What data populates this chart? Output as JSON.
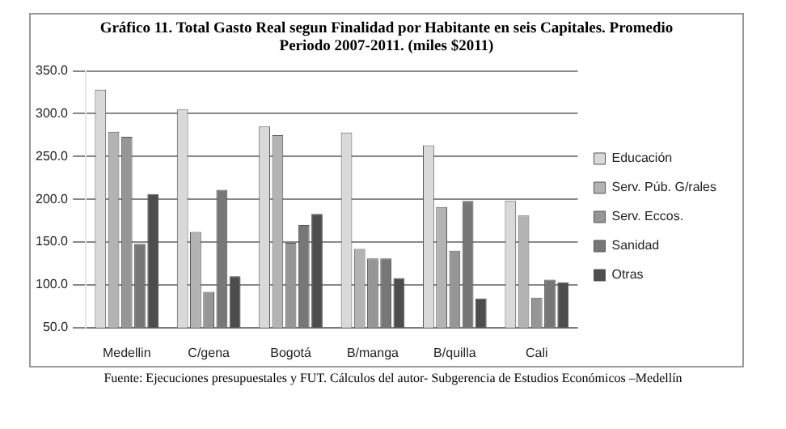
{
  "chart_data": {
    "type": "bar",
    "title": "Gráfico 11. Total Gasto Real segun Finalidad por Habitante en  seis Capitales. Promedio Periodo 2007-2011. (miles $2011)",
    "categories": [
      "Medellin",
      "C/gena",
      "Bogotá",
      "B/manga",
      "B/quilla",
      "Cali"
    ],
    "series": [
      {
        "name": "Educación",
        "color": "#d9d9d9",
        "values": [
          328,
          305,
          285,
          278,
          263,
          198
        ]
      },
      {
        "name": "Serv. Púb. G/rales",
        "color": "#b3b3b3",
        "values": [
          279,
          162,
          275,
          142,
          191,
          181
        ]
      },
      {
        "name": "Serv. Eccos.",
        "color": "#969696",
        "values": [
          273,
          92,
          149,
          131,
          140,
          85
        ]
      },
      {
        "name": "Sanidad",
        "color": "#777777",
        "values": [
          148,
          211,
          170,
          131,
          198,
          106
        ]
      },
      {
        "name": "Otras",
        "color": "#4d4d4d",
        "values": [
          206,
          110,
          183,
          108,
          84,
          103
        ]
      }
    ],
    "ylim": [
      50,
      350
    ],
    "yticks": [
      {
        "value": 50,
        "label": "50.0"
      },
      {
        "value": 100,
        "label": "100.0"
      },
      {
        "value": 150,
        "label": "150.0"
      },
      {
        "value": 200,
        "label": "200.0"
      },
      {
        "value": 250,
        "label": "250.0"
      },
      {
        "value": 300,
        "label": "300.0"
      },
      {
        "value": 350,
        "label": "350.0"
      }
    ],
    "grid": "y",
    "legend": "right",
    "annotations": [
      "Fuente: Ejecuciones presupuestales y FUT. Cálculos del autor- Subgerencia de Estudios Económicos –Medellín"
    ]
  }
}
